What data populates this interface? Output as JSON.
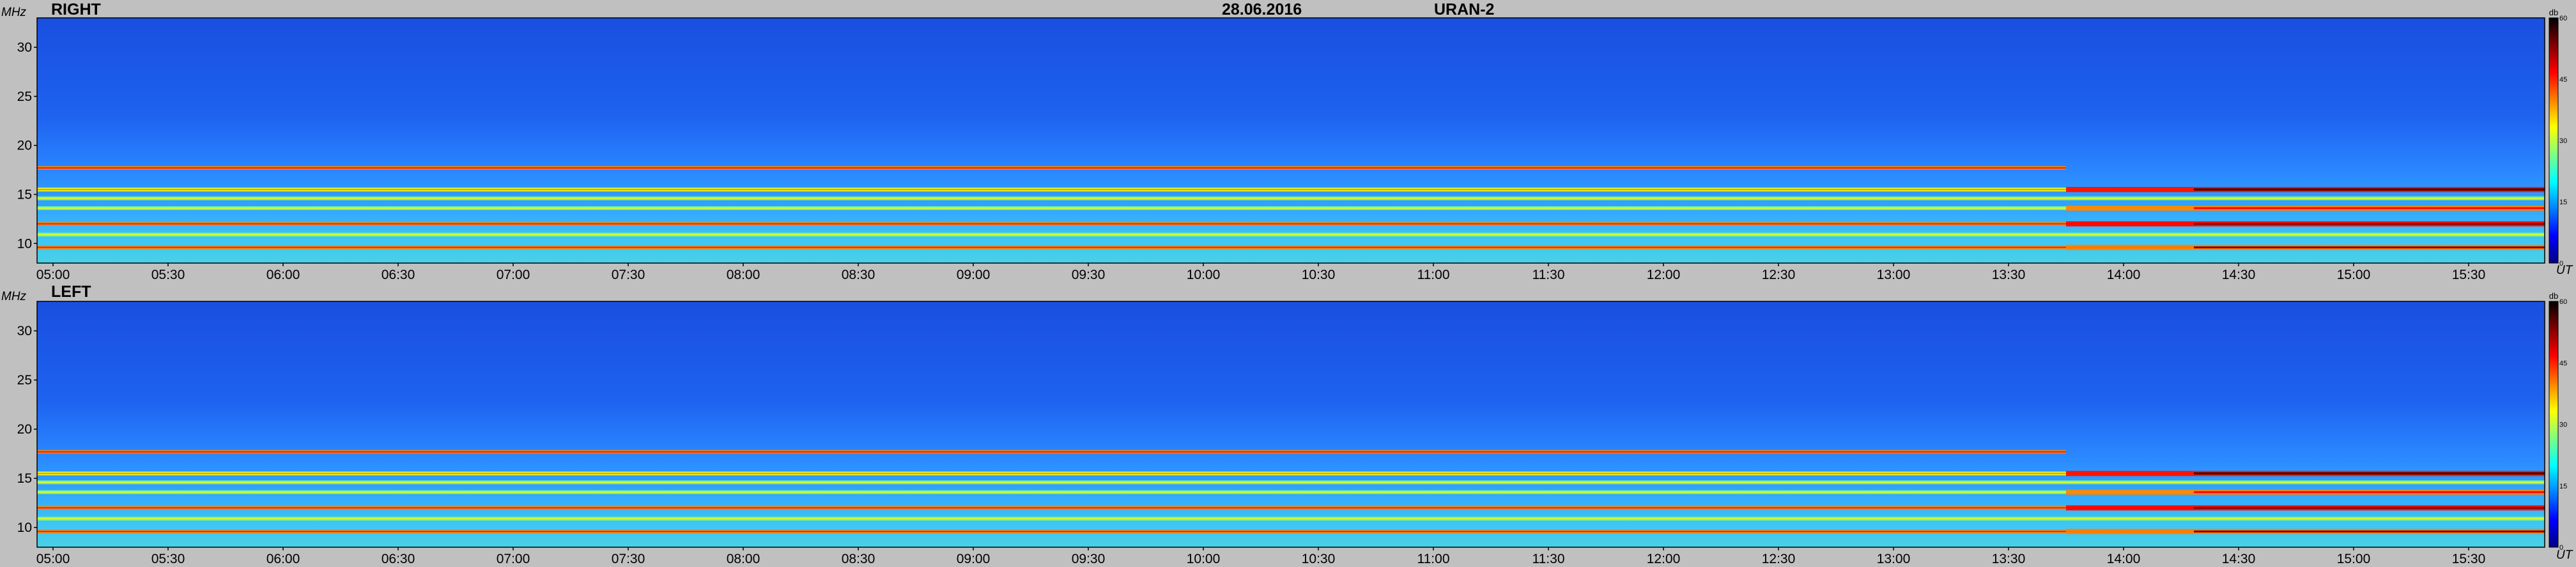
{
  "header": {
    "date": "28.06.2016",
    "instrument": "URAN-2"
  },
  "colors": {
    "background": "#c0c0c0",
    "colormap": [
      "#00007f",
      "#0000ff",
      "#0080ff",
      "#00ffff",
      "#80ff80",
      "#ffff00",
      "#ff8000",
      "#ff0000",
      "#800000",
      "#000000"
    ]
  },
  "chart_data": [
    {
      "type": "heatmap",
      "title": "RIGHT",
      "ylabel": "MHz",
      "xlabel": "UT",
      "colorbar_label": "db",
      "x_ticks": [
        "05:00",
        "05:30",
        "06:00",
        "06:30",
        "07:00",
        "07:30",
        "08:00",
        "08:30",
        "09:00",
        "09:30",
        "10:00",
        "10:30",
        "11:00",
        "11:30",
        "12:00",
        "12:30",
        "13:00",
        "13:30",
        "14:00",
        "14:30",
        "15:00",
        "15:30"
      ],
      "y_ticks": [
        "10",
        "15",
        "20",
        "25",
        "30"
      ],
      "y_range_mhz": [
        8,
        33
      ],
      "colorbar_ticks": [
        "0",
        "15",
        "30",
        "45",
        "60"
      ],
      "colorbar_range_db": [
        0,
        60
      ],
      "background_level_db": 6,
      "emission_bands_mhz": [
        {
          "f": 17.7,
          "level_db": 40,
          "t_end": "13:45"
        },
        {
          "f": 15.5,
          "level_db": 34
        },
        {
          "f": 14.6,
          "level_db": 28
        },
        {
          "f": 13.6,
          "level_db": 26
        },
        {
          "f": 12.0,
          "level_db": 42
        },
        {
          "f": 10.9,
          "level_db": 30
        },
        {
          "f": 9.6,
          "level_db": 40
        }
      ],
      "strong_emission_afternoon_mhz": [
        15.5,
        12.0,
        9.6,
        13.6
      ]
    },
    {
      "type": "heatmap",
      "title": "LEFT",
      "ylabel": "MHz",
      "xlabel": "UT",
      "colorbar_label": "db",
      "x_ticks": [
        "05:00",
        "05:30",
        "06:00",
        "06:30",
        "07:00",
        "07:30",
        "08:00",
        "08:30",
        "09:00",
        "09:30",
        "10:00",
        "10:30",
        "11:00",
        "11:30",
        "12:00",
        "12:30",
        "13:00",
        "13:30",
        "14:00",
        "14:30",
        "15:00",
        "15:30"
      ],
      "y_ticks": [
        "10",
        "15",
        "20",
        "25",
        "30"
      ],
      "y_range_mhz": [
        8,
        33
      ],
      "colorbar_ticks": [
        "0",
        "15",
        "30",
        "45",
        "60"
      ],
      "colorbar_range_db": [
        0,
        60
      ],
      "background_level_db": 6,
      "emission_bands_mhz": [
        {
          "f": 17.7,
          "level_db": 40,
          "t_end": "13:45"
        },
        {
          "f": 15.5,
          "level_db": 34
        },
        {
          "f": 14.6,
          "level_db": 28
        },
        {
          "f": 13.6,
          "level_db": 26
        },
        {
          "f": 12.0,
          "level_db": 42
        },
        {
          "f": 10.9,
          "level_db": 30
        },
        {
          "f": 9.6,
          "level_db": 40
        }
      ],
      "strong_emission_afternoon_mhz": [
        15.5,
        12.0,
        9.6,
        13.6
      ]
    }
  ]
}
